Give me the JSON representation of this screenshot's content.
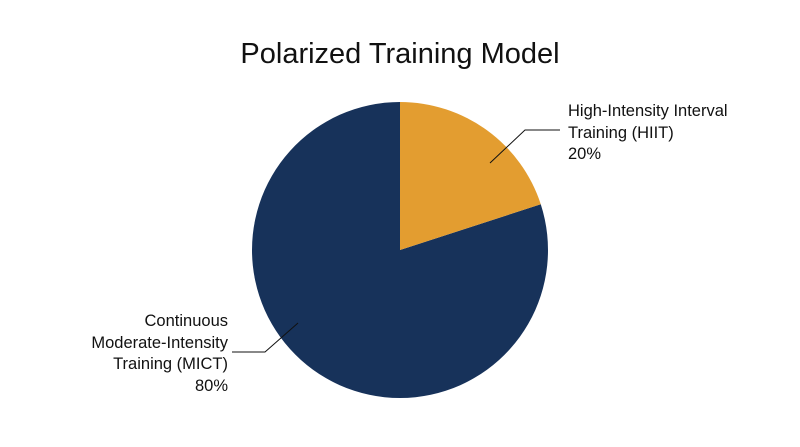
{
  "chart_data": {
    "type": "pie",
    "title": "Polarized Training Model",
    "categories": [
      "High-Intensity Interval Training (HIIT)",
      "Continuous Moderate-Intensity Training (MICT)"
    ],
    "values": [
      20,
      80
    ],
    "value_labels": [
      "20%",
      "80%"
    ],
    "colors": [
      "#e39d30",
      "#17325a"
    ]
  }
}
